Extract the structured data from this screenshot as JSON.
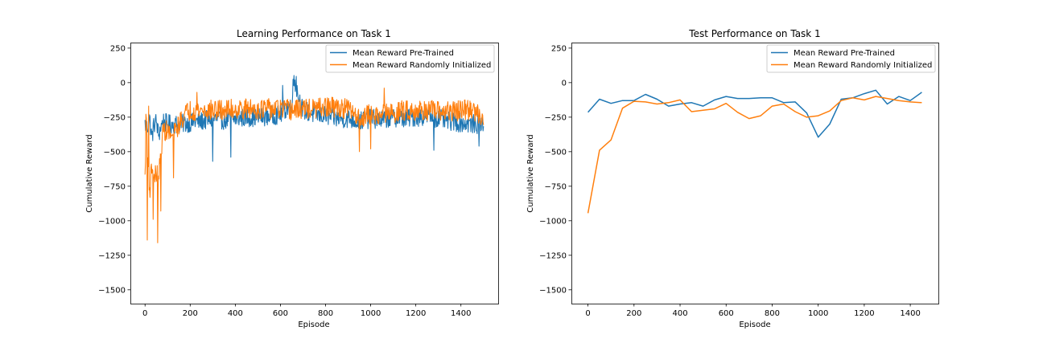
{
  "colors": {
    "pretrained": "#1f77b4",
    "random": "#ff7f0e"
  },
  "legend": {
    "pretrained": "Mean Reward Pre-Trained",
    "random": "Mean Reward Randomly Initialized"
  },
  "chart_data": [
    {
      "type": "line",
      "title": "Learning Performance on Task 1",
      "xlabel": "Episode",
      "ylabel": "Cumulative Reward",
      "xlim": [
        -65,
        1565
      ],
      "ylim": [
        -1600,
        290
      ],
      "xticks": [
        0,
        200,
        400,
        600,
        800,
        1000,
        1200,
        1400
      ],
      "yticks": [
        250,
        0,
        -250,
        -500,
        -750,
        -1000,
        -1250,
        -1500
      ],
      "legend_position": "top-right",
      "series_note_pretrained": "noisy per-episode reward, ~-250 level, range ~-570..45",
      "series": [
        {
          "name": "Mean Reward Pre-Trained",
          "color_key": "pretrained",
          "x": [
            0,
            10,
            20,
            30,
            40,
            50,
            60,
            70,
            80,
            100,
            150,
            200,
            250,
            300,
            350,
            400,
            450,
            500,
            550,
            600,
            650,
            660,
            680,
            700,
            750,
            800,
            850,
            900,
            950,
            1000,
            1050,
            1100,
            1150,
            1200,
            1250,
            1300,
            1350,
            1400,
            1450,
            1500
          ],
          "y": [
            -300,
            -330,
            -260,
            -400,
            -300,
            -280,
            -380,
            -320,
            -280,
            -300,
            -300,
            -290,
            -280,
            -260,
            -270,
            -260,
            -250,
            -250,
            -240,
            -230,
            -150,
            40,
            -100,
            -200,
            -230,
            -240,
            -260,
            -260,
            -280,
            -260,
            -270,
            -250,
            -260,
            -250,
            -240,
            -260,
            -280,
            -290,
            -300,
            -300
          ],
          "noise": 70,
          "spikes": [
            [
              300,
              -570
            ],
            [
              670,
              45
            ],
            [
              610,
              -20
            ],
            [
              1280,
              -490
            ],
            [
              1480,
              -460
            ],
            [
              380,
              -540
            ]
          ]
        },
        {
          "name": "Mean Reward Randomly Initialized",
          "color_key": "random",
          "x": [
            0,
            5,
            10,
            20,
            30,
            40,
            50,
            60,
            70,
            80,
            100,
            120,
            150,
            180,
            200,
            250,
            300,
            350,
            400,
            450,
            500,
            550,
            600,
            650,
            700,
            750,
            800,
            850,
            900,
            950,
            1000,
            1050,
            1100,
            1150,
            1200,
            1250,
            1300,
            1350,
            1400,
            1450,
            1500
          ],
          "y": [
            -700,
            -200,
            -500,
            -800,
            -600,
            -700,
            -650,
            -700,
            -500,
            -350,
            -350,
            -400,
            -300,
            -220,
            -200,
            -200,
            -200,
            -200,
            -190,
            -190,
            -190,
            -190,
            -190,
            -200,
            -190,
            -190,
            -180,
            -180,
            -190,
            -250,
            -230,
            -230,
            -220,
            -200,
            -200,
            -200,
            -210,
            -210,
            -200,
            -200,
            -250
          ],
          "noise": 75,
          "spikes": [
            [
              10,
              -1140
            ],
            [
              55,
              -1160
            ],
            [
              35,
              -990
            ],
            [
              70,
              -930
            ],
            [
              125,
              -690
            ],
            [
              15,
              -170
            ],
            [
              950,
              -500
            ],
            [
              1000,
              -480
            ],
            [
              1060,
              -40
            ],
            [
              230,
              -70
            ]
          ]
        }
      ]
    },
    {
      "type": "line",
      "title": "Test Performance on Task 1",
      "xlabel": "Episode",
      "ylabel": "Cumulative Reward",
      "xlim": [
        -72,
        1522
      ],
      "ylim": [
        -1600,
        290
      ],
      "xticks": [
        0,
        200,
        400,
        600,
        800,
        1000,
        1200,
        1400
      ],
      "yticks": [
        250,
        0,
        -250,
        -500,
        -750,
        -1000,
        -1250,
        -1500
      ],
      "legend_position": "top-right",
      "series": [
        {
          "name": "Mean Reward Pre-Trained",
          "color_key": "pretrained",
          "x": [
            0,
            50,
            100,
            150,
            200,
            250,
            300,
            350,
            400,
            450,
            500,
            550,
            600,
            650,
            700,
            750,
            800,
            850,
            900,
            950,
            1000,
            1050,
            1100,
            1150,
            1200,
            1250,
            1300,
            1350,
            1400,
            1450
          ],
          "y": [
            -215,
            -120,
            -150,
            -130,
            -130,
            -85,
            -120,
            -170,
            -155,
            -145,
            -170,
            -125,
            -100,
            -115,
            -115,
            -110,
            -110,
            -145,
            -140,
            -220,
            -395,
            -300,
            -120,
            -110,
            -80,
            -55,
            -155,
            -100,
            -130,
            -70
          ]
        },
        {
          "name": "Mean Reward Randomly Initialized",
          "color_key": "random",
          "x": [
            0,
            50,
            100,
            150,
            200,
            250,
            300,
            350,
            400,
            450,
            500,
            550,
            600,
            650,
            700,
            750,
            800,
            850,
            900,
            950,
            1000,
            1050,
            1100,
            1150,
            1200,
            1250,
            1300,
            1350,
            1400,
            1450
          ],
          "y": [
            -945,
            -490,
            -415,
            -185,
            -135,
            -140,
            -155,
            -145,
            -125,
            -210,
            -200,
            -190,
            -150,
            -215,
            -260,
            -240,
            -170,
            -155,
            -210,
            -250,
            -240,
            -205,
            -130,
            -110,
            -125,
            -100,
            -115,
            -130,
            -140,
            -145
          ]
        }
      ]
    }
  ]
}
